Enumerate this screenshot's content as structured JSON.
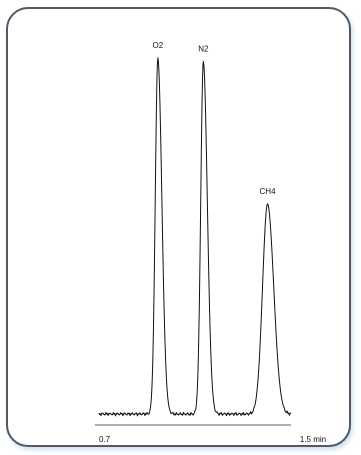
{
  "chart_data": {
    "type": "line",
    "title": "",
    "xlabel": "",
    "ylabel": "",
    "x_unit": "min",
    "xlim": [
      0.7,
      1.5
    ],
    "x_ticks": [
      {
        "value": 0.7,
        "label": "0.7"
      },
      {
        "value": 1.5,
        "label": "1.5 min"
      }
    ],
    "ylim": [
      0,
      100
    ],
    "grid": false,
    "series": [
      {
        "color": "#111111",
        "peaks": [
          {
            "label": "O2",
            "rt": 0.92,
            "height": 100
          },
          {
            "label": "N2",
            "rt": 1.09,
            "height": 99
          },
          {
            "label": "CH4",
            "rt": 1.33,
            "height": 59
          }
        ]
      }
    ]
  }
}
